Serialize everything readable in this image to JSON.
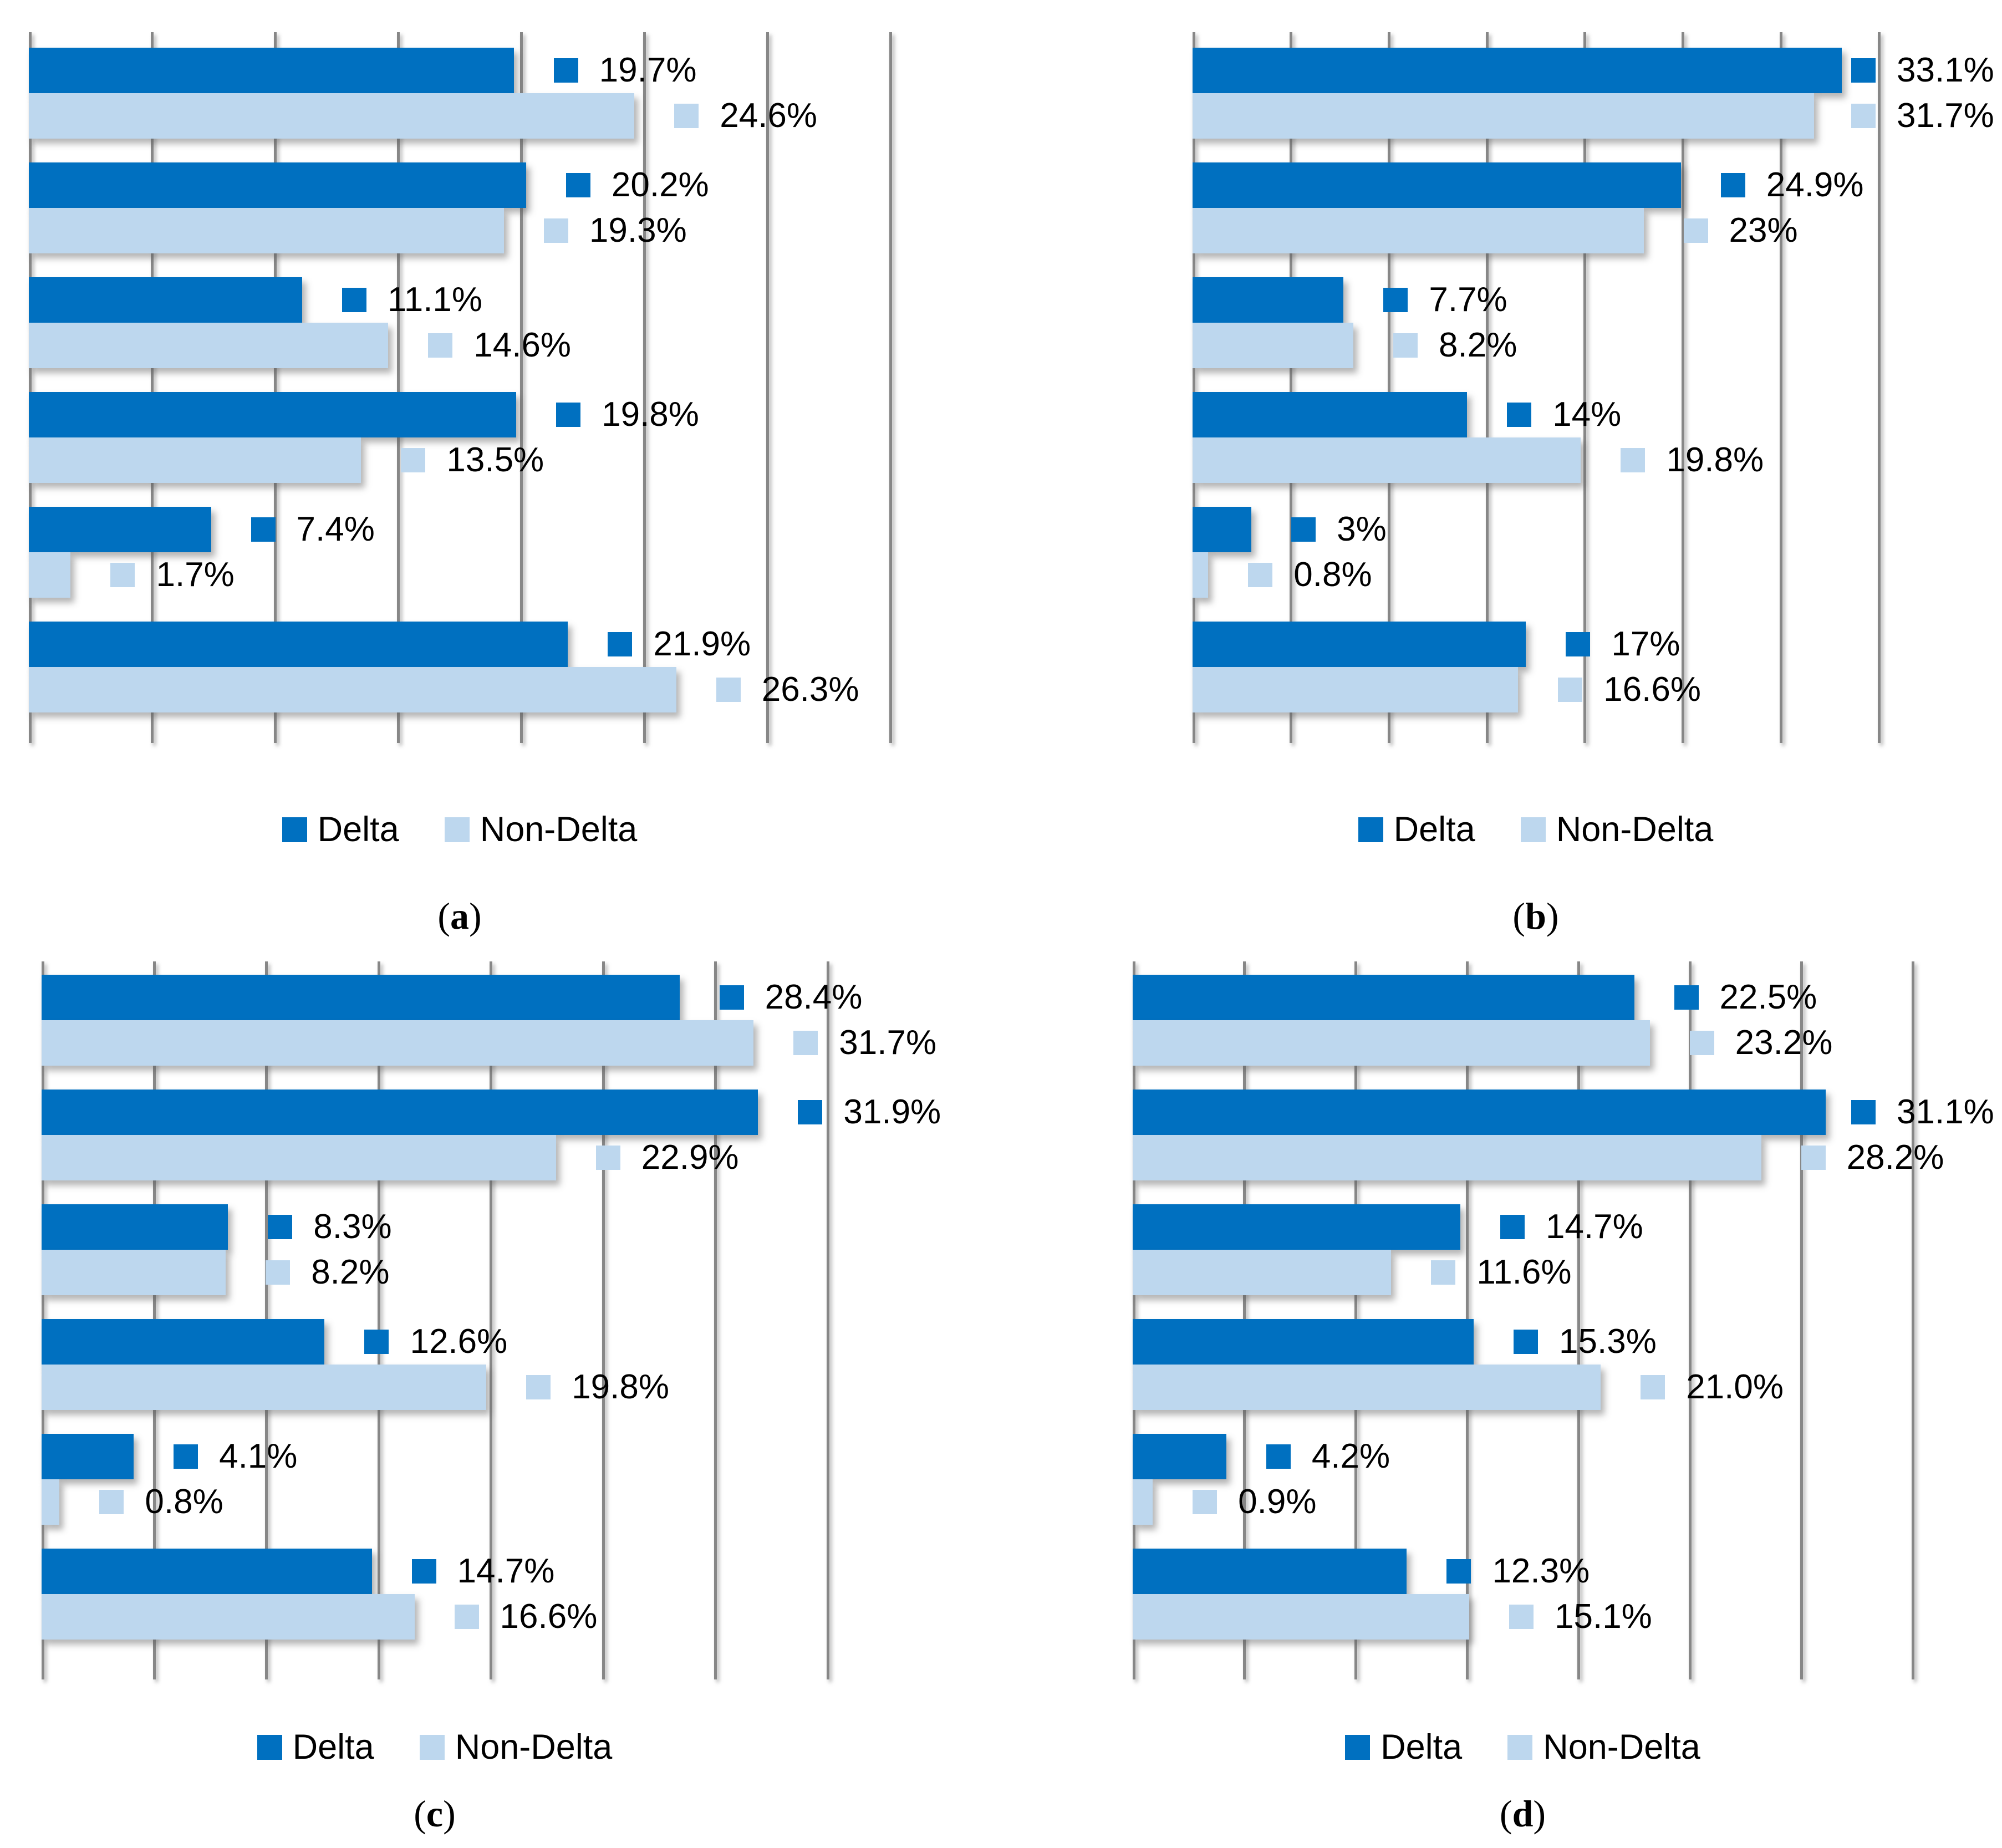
{
  "figure": {
    "colors": {
      "delta": "#0070C0",
      "non_delta": "#BDD7EE",
      "gridline": "#878787",
      "label_text": "#000000"
    },
    "axis": {
      "min": 0,
      "max": 35,
      "gridline_interval": 5,
      "gridlines_pct": [
        0,
        5,
        10,
        15,
        20,
        25,
        30,
        35
      ]
    }
  },
  "chart_data": [
    {
      "id": "a",
      "type": "bar",
      "orientation": "horizontal",
      "caption": "a",
      "legend": [
        "Delta",
        "Non-Delta"
      ],
      "xlim": [
        0,
        35
      ],
      "grid": true,
      "legend_position": "bottom",
      "series": [
        {
          "name": "Delta",
          "values": [
            19.7,
            20.2,
            11.1,
            19.8,
            7.4,
            21.9
          ],
          "labels": [
            "19.7%",
            "20.2%",
            "11.1%",
            "19.8%",
            "7.4%",
            "21.9%"
          ]
        },
        {
          "name": "Non-Delta",
          "values": [
            24.6,
            19.3,
            14.6,
            13.5,
            1.7,
            26.3
          ],
          "labels": [
            "24.6%",
            "19.3%",
            "14.6%",
            "13.5%",
            "1.7%",
            "26.3%"
          ]
        }
      ]
    },
    {
      "id": "b",
      "type": "bar",
      "orientation": "horizontal",
      "caption": "b",
      "legend": [
        "Delta",
        "Non-Delta"
      ],
      "xlim": [
        0,
        35
      ],
      "grid": true,
      "legend_position": "bottom",
      "series": [
        {
          "name": "Delta",
          "values": [
            33.1,
            24.9,
            7.7,
            14,
            3,
            17
          ],
          "labels": [
            "33.1%",
            "24.9%",
            "7.7%",
            "14%",
            "3%",
            "17%"
          ]
        },
        {
          "name": "Non-Delta",
          "values": [
            31.7,
            23,
            8.2,
            19.8,
            0.8,
            16.6
          ],
          "labels": [
            "31.7%",
            "23%",
            "8.2%",
            "19.8%",
            "0.8%",
            "16.6%"
          ]
        }
      ]
    },
    {
      "id": "c",
      "type": "bar",
      "orientation": "horizontal",
      "caption": "c",
      "legend": [
        "Delta",
        "Non-Delta"
      ],
      "xlim": [
        0,
        35
      ],
      "grid": true,
      "legend_position": "bottom",
      "series": [
        {
          "name": "Delta",
          "values": [
            28.4,
            31.9,
            8.3,
            12.6,
            4.1,
            14.7
          ],
          "labels": [
            "28.4%",
            "31.9%",
            "8.3%",
            "12.6%",
            "4.1%",
            "14.7%"
          ]
        },
        {
          "name": "Non-Delta",
          "values": [
            31.7,
            22.9,
            8.2,
            19.8,
            0.8,
            16.6
          ],
          "labels": [
            "31.7%",
            "22.9%",
            "8.2%",
            "19.8%",
            "0.8%",
            "16.6%"
          ]
        }
      ]
    },
    {
      "id": "d",
      "type": "bar",
      "orientation": "horizontal",
      "caption": "d",
      "legend": [
        "Delta",
        "Non-Delta"
      ],
      "xlim": [
        0,
        35
      ],
      "grid": true,
      "legend_position": "bottom",
      "series": [
        {
          "name": "Delta",
          "values": [
            22.5,
            31.1,
            14.7,
            15.3,
            4.2,
            12.3
          ],
          "labels": [
            "22.5%",
            "31.1%",
            "14.7%",
            "15.3%",
            "4.2%",
            "12.3%"
          ]
        },
        {
          "name": "Non-Delta",
          "values": [
            23.2,
            28.2,
            11.6,
            21.0,
            0.9,
            15.1
          ],
          "labels": [
            "23.2%",
            "28.2%",
            "11.6%",
            "21.0%",
            "0.9%",
            "15.1%"
          ]
        }
      ]
    }
  ]
}
